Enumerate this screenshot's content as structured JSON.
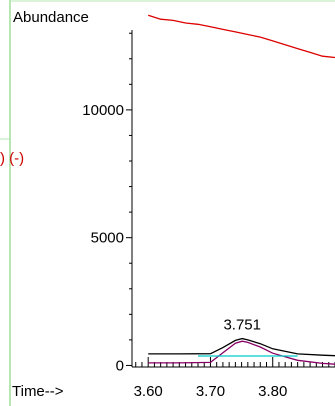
{
  "chart_data": {
    "type": "line",
    "ylabel": "Abundance",
    "xlabel": "Time-->",
    "side_label": ") (-)",
    "y_ticks": [
      0,
      5000,
      10000
    ],
    "x_ticks": [
      3.6,
      3.7,
      3.8
    ],
    "x_tick_labels": [
      "3.60",
      "3.70",
      "3.80"
    ],
    "xlim": [
      3.574,
      3.9
    ],
    "ylim": [
      -100,
      14300
    ],
    "peak_annotation": {
      "label": "3.751",
      "x": 3.751,
      "y": 1050
    },
    "series": [
      {
        "color": "#dd0000",
        "x": [
          3.6,
          3.62,
          3.64,
          3.66,
          3.68,
          3.7,
          3.72,
          3.74,
          3.76,
          3.78,
          3.8,
          3.82,
          3.84,
          3.86,
          3.88,
          3.9
        ],
        "y": [
          13700,
          13550,
          13500,
          13400,
          13350,
          13250,
          13150,
          13050,
          12950,
          12850,
          12700,
          12550,
          12400,
          12250,
          12100,
          12050
        ]
      },
      {
        "color": "#000000",
        "x": [
          3.6,
          3.65,
          3.7,
          3.72,
          3.74,
          3.751,
          3.76,
          3.78,
          3.8,
          3.84,
          3.88,
          3.9
        ],
        "y": [
          450,
          450,
          460,
          700,
          980,
          1050,
          1000,
          850,
          650,
          450,
          400,
          380
        ]
      },
      {
        "color": "#880066",
        "x": [
          3.6,
          3.65,
          3.7,
          3.72,
          3.74,
          3.751,
          3.76,
          3.78,
          3.8,
          3.84,
          3.88,
          3.9
        ],
        "y": [
          100,
          100,
          120,
          500,
          870,
          950,
          900,
          720,
          480,
          200,
          80,
          50
        ]
      },
      {
        "color": "#00cccc",
        "x": [
          3.68,
          3.84
        ],
        "y": [
          370,
          370
        ]
      }
    ],
    "grid": false,
    "colors": {
      "frame": "#b7e7b0",
      "axis": "#000000",
      "annotation": "#cc0000"
    }
  }
}
